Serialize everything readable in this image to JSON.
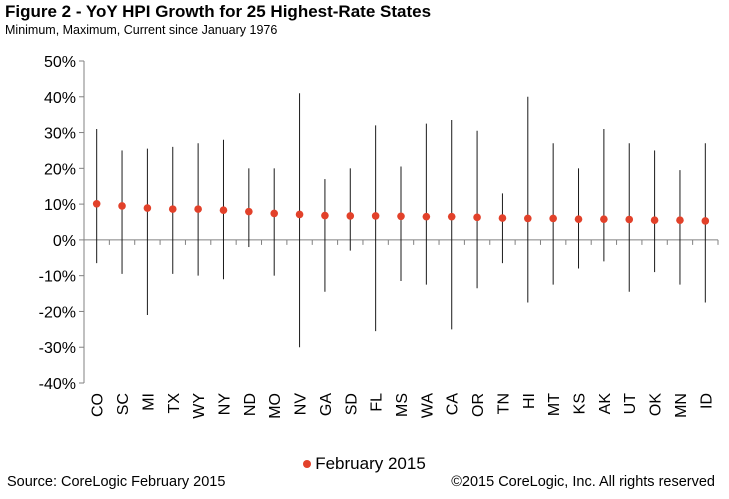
{
  "title": "Figure 2 - YoY HPI Growth for 25 Highest-Rate States",
  "subtitle": "Minimum, Maximum, Current since January 1976",
  "source": "Source: CoreLogic  February 2015",
  "copyright": "©2015 CoreLogic, Inc. All rights reserved",
  "legend": {
    "label": "February 2015",
    "color": "#e2412a"
  },
  "chart_data": {
    "type": "scatter",
    "categories": [
      "CO",
      "SC",
      "MI",
      "TX",
      "WY",
      "NY",
      "ND",
      "MO",
      "NV",
      "GA",
      "SD",
      "FL",
      "MS",
      "WA",
      "CA",
      "OR",
      "TN",
      "HI",
      "MT",
      "KS",
      "AK",
      "UT",
      "OK",
      "MN",
      "ID"
    ],
    "ylim": [
      -40,
      50
    ],
    "yticks": [
      -40,
      -30,
      -20,
      -10,
      0,
      10,
      20,
      30,
      40,
      50
    ],
    "ytick_labels": [
      "-40%",
      "-30%",
      "-20%",
      "-10%",
      "0%",
      "10%",
      "20%",
      "30%",
      "40%",
      "50%"
    ],
    "grid": false,
    "legend_position": "bottom",
    "series": [
      {
        "name": "February 2015",
        "values": [
          10.1,
          9.5,
          8.9,
          8.6,
          8.6,
          8.3,
          7.9,
          7.4,
          7.1,
          6.8,
          6.7,
          6.7,
          6.6,
          6.5,
          6.5,
          6.3,
          6.1,
          6.0,
          6.0,
          5.8,
          5.8,
          5.7,
          5.5,
          5.5,
          5.3
        ]
      }
    ],
    "ranges": {
      "min": [
        -6.5,
        -9.5,
        -21,
        -9.5,
        -10,
        -11,
        -2,
        -10,
        -30,
        -14.5,
        -3,
        -25.5,
        -11.5,
        -12.5,
        -25,
        -13.5,
        -6.5,
        -17.5,
        -12.5,
        -8,
        -6,
        -14.5,
        -9,
        -12.5,
        -17.5
      ],
      "max": [
        31,
        25,
        25.5,
        26,
        27,
        28,
        20,
        20,
        41,
        17,
        20,
        32,
        20.5,
        32.5,
        33.5,
        30.5,
        13,
        40,
        27,
        20,
        31,
        27,
        25,
        19.5,
        27
      ]
    }
  }
}
